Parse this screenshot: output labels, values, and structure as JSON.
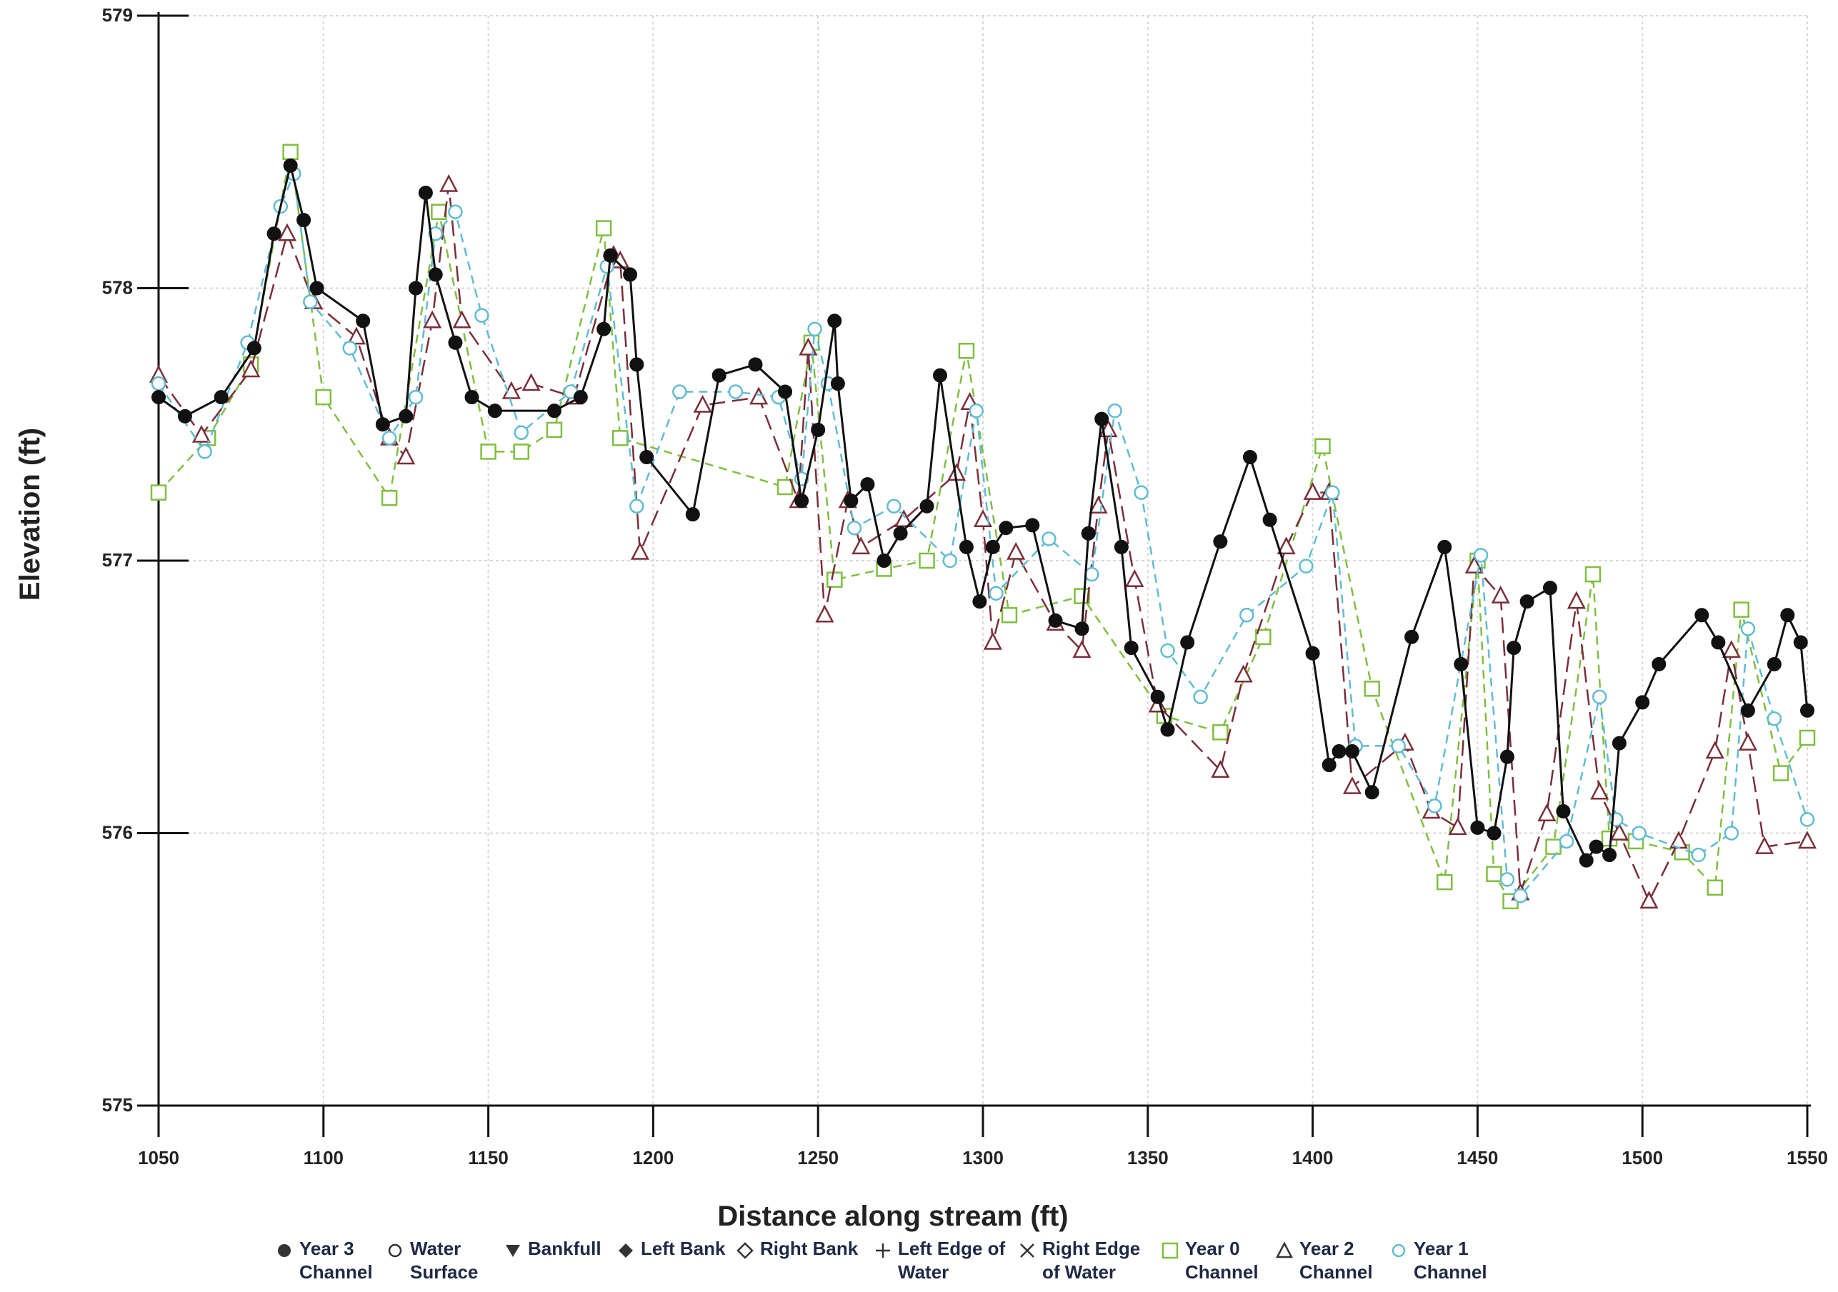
{
  "chart_data": {
    "type": "line",
    "title": "",
    "xlabel": "Distance along stream (ft)",
    "ylabel": "Elevation (ft)",
    "xlim": [
      1050,
      1550
    ],
    "ylim": [
      575,
      579
    ],
    "x_ticks": [
      1050,
      1100,
      1150,
      1200,
      1250,
      1300,
      1350,
      1400,
      1450,
      1500,
      1550
    ],
    "y_ticks": [
      575,
      576,
      577,
      578,
      579
    ],
    "grid": true,
    "legend_position": "bottom",
    "legend": [
      {
        "label": "Year 3\nChannel",
        "symbol": "filled-circle"
      },
      {
        "label": "Water\nSurface",
        "symbol": "open-circle"
      },
      {
        "label": "Bankfull",
        "symbol": "filled-triangle-down"
      },
      {
        "label": "Left Bank",
        "symbol": "filled-diamond"
      },
      {
        "label": "Right Bank",
        "symbol": "open-diamond"
      },
      {
        "label": "Left Edge of\nWater",
        "symbol": "plus"
      },
      {
        "label": "Right Edge\nof Water",
        "symbol": "cross"
      },
      {
        "label": "Year 0\nChannel",
        "symbol": "open-square"
      },
      {
        "label": "Year 2\nChannel",
        "symbol": "open-triangle"
      },
      {
        "label": "Year 1\nChannel",
        "symbol": "open-circle-blue"
      }
    ],
    "series": [
      {
        "name": "Year 3 Channel",
        "color": "#111111",
        "marker": "filled-circle",
        "line": "solid",
        "x": [
          1050,
          1058,
          1069,
          1079,
          1085,
          1090,
          1094,
          1098,
          1112,
          1118,
          1125,
          1128,
          1131,
          1134,
          1140,
          1145,
          1152,
          1170,
          1178,
          1185,
          1187,
          1193,
          1195,
          1198,
          1212,
          1220,
          1231,
          1240,
          1245,
          1250,
          1255,
          1256,
          1260,
          1265,
          1270,
          1275,
          1283,
          1287,
          1295,
          1299,
          1303,
          1307,
          1315,
          1322,
          1330,
          1332,
          1336,
          1342,
          1345,
          1353,
          1356,
          1362,
          1372,
          1381,
          1387,
          1400,
          1405,
          1408,
          1412,
          1418,
          1430,
          1440,
          1445,
          1450,
          1455,
          1459,
          1461,
          1465,
          1472,
          1476,
          1483,
          1486,
          1490,
          1493,
          1500,
          1505,
          1518,
          1523,
          1532,
          1540,
          1544,
          1548,
          1550
        ],
        "y": [
          577.6,
          577.53,
          577.6,
          577.78,
          578.2,
          578.45,
          578.25,
          578.0,
          577.88,
          577.5,
          577.53,
          578.0,
          578.35,
          578.05,
          577.8,
          577.6,
          577.55,
          577.55,
          577.6,
          577.85,
          578.12,
          578.05,
          577.72,
          577.38,
          577.17,
          577.68,
          577.72,
          577.62,
          577.22,
          577.48,
          577.88,
          577.65,
          577.22,
          577.28,
          577.0,
          577.1,
          577.2,
          577.68,
          577.05,
          576.85,
          577.05,
          577.12,
          577.13,
          576.78,
          576.75,
          577.1,
          577.52,
          577.05,
          576.68,
          576.5,
          576.38,
          576.7,
          577.07,
          577.38,
          577.15,
          576.66,
          576.25,
          576.3,
          576.3,
          576.15,
          576.72,
          577.05,
          576.62,
          576.02,
          576.0,
          576.28,
          576.68,
          576.85,
          576.9,
          576.08,
          575.9,
          575.95,
          575.92,
          576.33,
          576.48,
          576.62,
          576.8,
          576.7,
          576.45,
          576.62,
          576.8,
          576.7,
          576.45
        ]
      },
      {
        "name": "Year 0 Channel",
        "color": "#7fbf3f",
        "marker": "open-square",
        "line": "dashed",
        "x": [
          1050,
          1065,
          1078,
          1090,
          1100,
          1120,
          1135,
          1150,
          1160,
          1170,
          1185,
          1190,
          1240,
          1248,
          1255,
          1270,
          1283,
          1295,
          1308,
          1330,
          1355,
          1372,
          1385,
          1403,
          1418,
          1440,
          1450,
          1455,
          1460,
          1473,
          1485,
          1490,
          1498,
          1512,
          1522,
          1530,
          1542,
          1550
        ],
        "y": [
          577.25,
          577.45,
          577.72,
          578.5,
          577.6,
          577.23,
          578.28,
          577.4,
          577.4,
          577.48,
          578.22,
          577.45,
          577.27,
          577.8,
          576.93,
          576.97,
          577.0,
          577.77,
          576.8,
          576.87,
          576.43,
          576.37,
          576.72,
          577.42,
          576.53,
          575.82,
          577.0,
          575.85,
          575.75,
          575.95,
          576.95,
          575.98,
          575.97,
          575.93,
          575.8,
          576.82,
          576.22,
          576.35
        ]
      },
      {
        "name": "Year 2 Channel",
        "color": "#7a2e38",
        "marker": "open-triangle",
        "line": "dashed",
        "x": [
          1050,
          1063,
          1078,
          1089,
          1097,
          1110,
          1120,
          1125,
          1133,
          1138,
          1142,
          1157,
          1163,
          1176,
          1188,
          1190,
          1196,
          1215,
          1232,
          1244,
          1247,
          1252,
          1259,
          1263,
          1276,
          1292,
          1296,
          1300,
          1303,
          1310,
          1322,
          1330,
          1335,
          1338,
          1346,
          1353,
          1372,
          1379,
          1392,
          1400,
          1405,
          1412,
          1428,
          1436,
          1444,
          1449,
          1457,
          1463,
          1471,
          1480,
          1487,
          1493,
          1502,
          1511,
          1522,
          1527,
          1532,
          1537,
          1550
        ],
        "y": [
          577.68,
          577.46,
          577.7,
          578.2,
          577.95,
          577.82,
          577.45,
          577.38,
          577.88,
          578.38,
          577.88,
          577.62,
          577.65,
          577.6,
          578.12,
          578.1,
          577.03,
          577.57,
          577.6,
          577.22,
          577.78,
          576.8,
          577.22,
          577.05,
          577.15,
          577.32,
          577.58,
          577.15,
          576.7,
          577.03,
          576.77,
          576.67,
          577.2,
          577.48,
          576.93,
          576.47,
          576.23,
          576.58,
          577.05,
          577.25,
          577.25,
          576.17,
          576.33,
          576.08,
          576.02,
          576.98,
          576.87,
          575.78,
          576.07,
          576.85,
          576.15,
          576.0,
          575.75,
          575.97,
          576.3,
          576.67,
          576.33,
          575.95,
          575.97
        ]
      },
      {
        "name": "Year 1 Channel",
        "color": "#5fbcd3",
        "marker": "open-circle",
        "line": "dashed",
        "x": [
          1050,
          1064,
          1077,
          1087,
          1091,
          1096,
          1108,
          1120,
          1128,
          1134,
          1140,
          1148,
          1160,
          1175,
          1186,
          1195,
          1208,
          1225,
          1238,
          1245,
          1249,
          1253,
          1261,
          1273,
          1290,
          1298,
          1304,
          1320,
          1333,
          1340,
          1348,
          1356,
          1366,
          1380,
          1398,
          1406,
          1413,
          1426,
          1437,
          1451,
          1459,
          1463,
          1477,
          1487,
          1492,
          1499,
          1517,
          1527,
          1532,
          1540,
          1550
        ],
        "y": [
          577.65,
          577.4,
          577.8,
          578.3,
          578.42,
          577.95,
          577.78,
          577.45,
          577.6,
          578.2,
          578.28,
          577.9,
          577.47,
          577.62,
          578.08,
          577.2,
          577.62,
          577.62,
          577.6,
          577.3,
          577.85,
          577.65,
          577.12,
          577.2,
          577.0,
          577.55,
          576.88,
          577.08,
          576.95,
          577.55,
          577.25,
          576.67,
          576.5,
          576.8,
          576.98,
          577.25,
          576.32,
          576.32,
          576.1,
          577.02,
          575.83,
          575.77,
          575.97,
          576.5,
          576.05,
          576.0,
          575.92,
          576.0,
          576.75,
          576.42,
          576.05
        ]
      }
    ]
  }
}
